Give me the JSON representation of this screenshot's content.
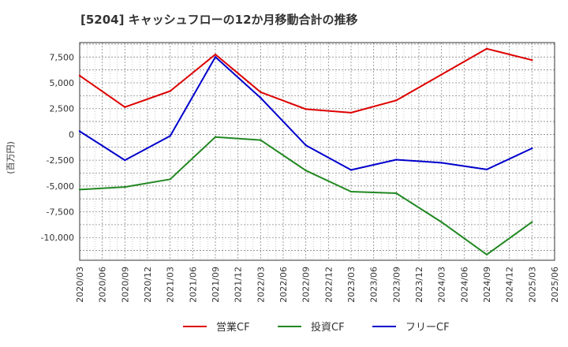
{
  "chart_data": {
    "type": "line",
    "title": "[5204]  キャッシュフローの12か月移動合計の推移",
    "xlabel": "",
    "ylabel": "(百万円)",
    "ylim": [
      -12200,
      8900
    ],
    "yticks": [
      7500,
      5000,
      2500,
      0,
      -2500,
      -5000,
      -7500,
      -10000
    ],
    "ytick_labels": [
      "7,500",
      "5,000",
      "2,500",
      "0",
      "-2,500",
      "-5,000",
      "-7,500",
      "-10,000"
    ],
    "x": [
      "2020/03",
      "2020/06",
      "2020/09",
      "2020/12",
      "2021/03",
      "2021/06",
      "2021/09",
      "2021/12",
      "2022/03",
      "2022/06",
      "2022/09",
      "2022/12",
      "2023/03",
      "2023/06",
      "2023/09",
      "2023/12",
      "2024/03",
      "2024/06",
      "2024/09",
      "2024/12",
      "2025/03",
      "2025/06"
    ],
    "grid": true,
    "legend_position": "bottom",
    "series": [
      {
        "name": "営業CF",
        "color": "#dd0000",
        "points": [
          [
            "2020/03",
            5700
          ],
          [
            "2020/09",
            2650
          ],
          [
            "2021/03",
            4200
          ],
          [
            "2021/09",
            7750
          ],
          [
            "2022/03",
            4100
          ],
          [
            "2022/09",
            2450
          ],
          [
            "2023/03",
            2100
          ],
          [
            "2023/09",
            3300
          ],
          [
            "2024/03",
            5800
          ],
          [
            "2024/09",
            8300
          ],
          [
            "2025/03",
            7200
          ]
        ]
      },
      {
        "name": "投資CF",
        "color": "#228822",
        "points": [
          [
            "2020/03",
            -5350
          ],
          [
            "2020/09",
            -5100
          ],
          [
            "2021/03",
            -4350
          ],
          [
            "2021/09",
            -250
          ],
          [
            "2022/03",
            -550
          ],
          [
            "2022/09",
            -3500
          ],
          [
            "2023/03",
            -5550
          ],
          [
            "2023/09",
            -5700
          ],
          [
            "2024/03",
            -8500
          ],
          [
            "2024/09",
            -11650
          ],
          [
            "2025/03",
            -8500
          ]
        ]
      },
      {
        "name": "フリーCF",
        "color": "#0000cc",
        "points": [
          [
            "2020/03",
            300
          ],
          [
            "2020/09",
            -2500
          ],
          [
            "2021/03",
            -150
          ],
          [
            "2021/09",
            7500
          ],
          [
            "2022/03",
            3550
          ],
          [
            "2022/09",
            -1050
          ],
          [
            "2023/03",
            -3450
          ],
          [
            "2023/09",
            -2450
          ],
          [
            "2024/03",
            -2750
          ],
          [
            "2024/09",
            -3400
          ],
          [
            "2025/03",
            -1350
          ]
        ]
      }
    ]
  }
}
